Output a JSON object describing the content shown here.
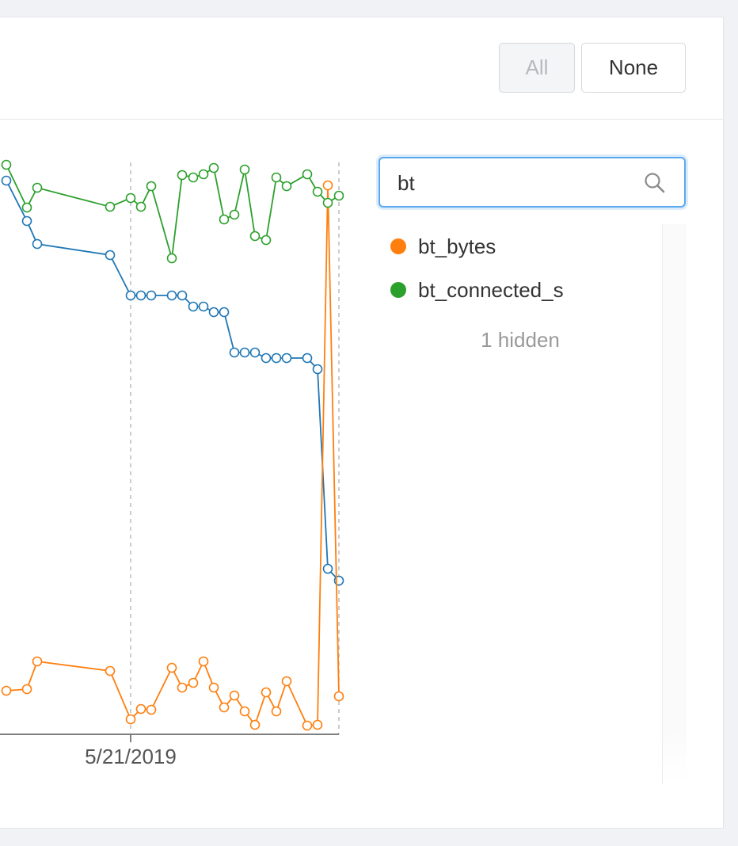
{
  "ui": {
    "buttons": [
      "All",
      "None"
    ],
    "search_value": "bt",
    "hidden_note": "1 hidden"
  },
  "chart_data": {
    "type": "line",
    "x": [
      8,
      34,
      47,
      139,
      165,
      178,
      191,
      217,
      230,
      244,
      257,
      270,
      283,
      296,
      309,
      322,
      336,
      349,
      362,
      388,
      401,
      414,
      428
    ],
    "xlim": [
      0,
      428
    ],
    "ylim": [
      0,
      727
    ],
    "xticks": [
      {
        "value": 165,
        "label": "5/21/2019"
      }
    ],
    "series": [
      {
        "color": "#1f77b4",
        "values": [
          699,
          648,
          619,
          605,
          554,
          554,
          554,
          554,
          554,
          540,
          540,
          533,
          533,
          482,
          482,
          482,
          475,
          475,
          475,
          475,
          461,
          209,
          194
        ]
      },
      {
        "name": "bt_bytes",
        "color": "#ff7f0e",
        "values": [
          55,
          57,
          92,
          80,
          19,
          32,
          31,
          84,
          59,
          65,
          92,
          59,
          34,
          49,
          29,
          12,
          53,
          29,
          67,
          11,
          12,
          693,
          48
        ]
      },
      {
        "name": "bt_connected_s",
        "color": "#2ca02c",
        "values": [
          719,
          665,
          690,
          666,
          677,
          666,
          692,
          601,
          706,
          703,
          707,
          715,
          650,
          656,
          713,
          629,
          624,
          703,
          692,
          707,
          685,
          671,
          680
        ]
      }
    ]
  }
}
